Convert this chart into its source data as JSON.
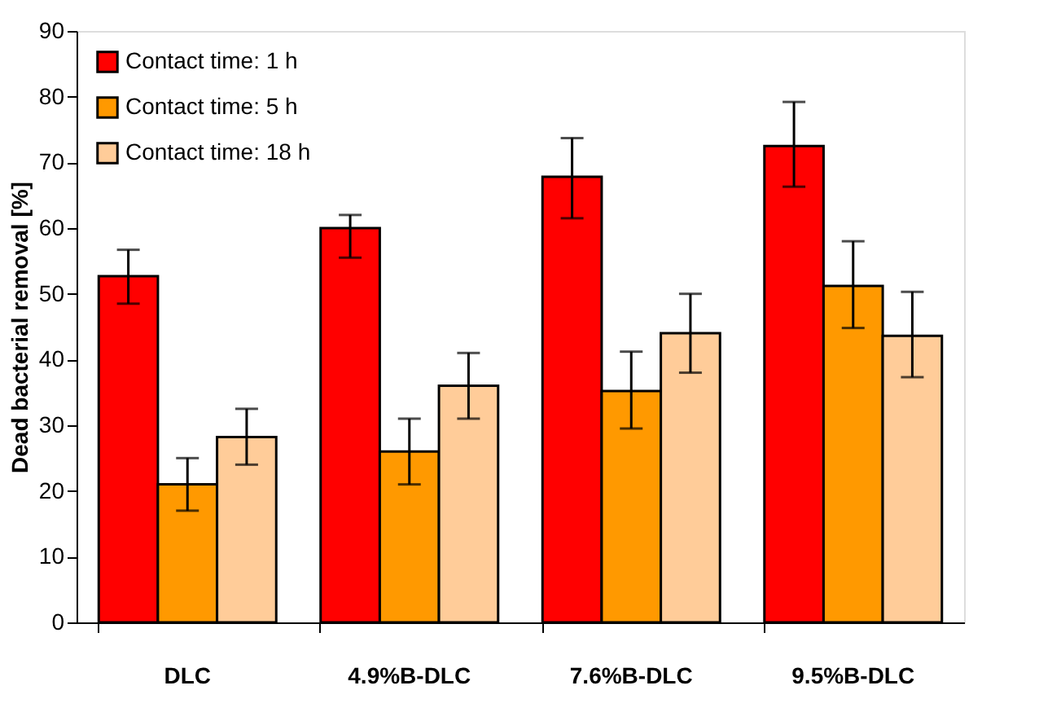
{
  "chart_data": {
    "type": "bar",
    "ylabel": "Dead bacterial removal [%]",
    "categories": [
      "DLC",
      "4.9%B-DLC",
      "7.6%B-DLC",
      "9.5%B-DLC"
    ],
    "series": [
      {
        "name": "Contact time: 1 h",
        "color": "#ff0000",
        "values": [
          52.7,
          60,
          67.8,
          72.5
        ],
        "errors": [
          [
            48.5,
            56.7
          ],
          [
            55.5,
            62
          ],
          [
            61.5,
            73.7
          ],
          [
            66.3,
            79.2
          ]
        ]
      },
      {
        "name": "Contact time: 5 h",
        "color": "#ff9900",
        "values": [
          21,
          26,
          35.2,
          51.2
        ],
        "errors": [
          [
            17,
            25
          ],
          [
            21,
            31
          ],
          [
            29.5,
            41.2
          ],
          [
            44.8,
            58
          ]
        ]
      },
      {
        "name": "Contact time: 18 h",
        "color": "#ffcc99",
        "values": [
          28.2,
          36,
          44,
          43.6
        ],
        "errors": [
          [
            24,
            32.5
          ],
          [
            31,
            41
          ],
          [
            38,
            50
          ],
          [
            37.3,
            50.3
          ]
        ]
      }
    ],
    "ylim": [
      0,
      90
    ],
    "yticks": [
      0,
      10,
      20,
      30,
      40,
      50,
      60,
      70,
      80,
      90
    ],
    "grid": false,
    "legend": "top left"
  }
}
